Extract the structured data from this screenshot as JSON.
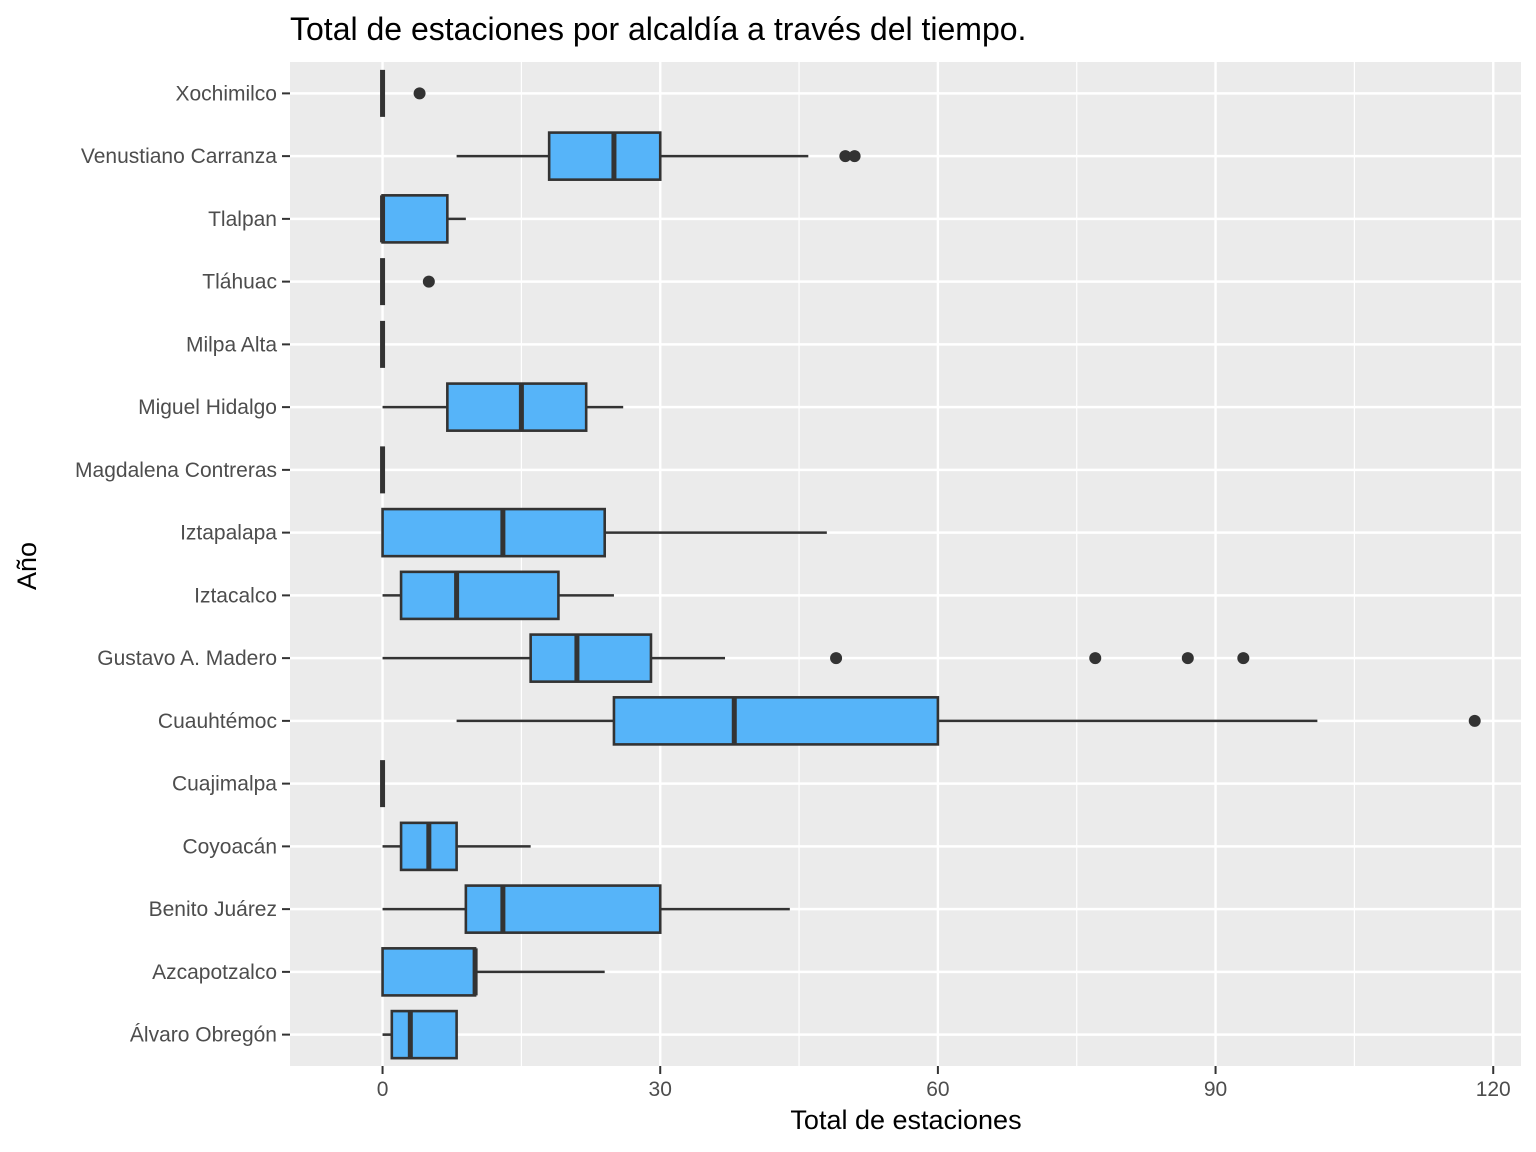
{
  "chart_data": {
    "type": "boxplot",
    "orientation": "horizontal",
    "title": "Total de estaciones por alcaldía a través del tiempo.",
    "xlabel": "Total de estaciones",
    "ylabel": "Año",
    "xlim": [
      -10,
      123
    ],
    "xticks": [
      0,
      30,
      60,
      90,
      120
    ],
    "grid": true,
    "legend": "none",
    "colors": {
      "panel": "#EBEBEB",
      "grid": "#FFFFFF",
      "box_fill": "#56B4F9",
      "box_line": "#333333",
      "tick": "#333333"
    },
    "categories": [
      "Xochimilco",
      "Venustiano Carranza",
      "Tlalpan",
      "Tláhuac",
      "Milpa Alta",
      "Miguel Hidalgo",
      "Magdalena Contreras",
      "Iztapalapa",
      "Iztacalco",
      "Gustavo A. Madero",
      "Cuauhtémoc",
      "Cuajimalpa",
      "Coyoacán",
      "Benito Juárez",
      "Azcapotzalco",
      "Álvaro Obregón"
    ],
    "boxes": [
      {
        "name": "Xochimilco",
        "min": 0,
        "q1": 0,
        "median": 0,
        "q3": 0,
        "max": 0,
        "outliers": [
          4
        ]
      },
      {
        "name": "Venustiano Carranza",
        "min": 8,
        "q1": 18,
        "median": 25,
        "q3": 30,
        "max": 46,
        "outliers": [
          50,
          51
        ]
      },
      {
        "name": "Tlalpan",
        "min": 0,
        "q1": 0,
        "median": 0,
        "q3": 7,
        "max": 9,
        "outliers": []
      },
      {
        "name": "Tláhuac",
        "min": 0,
        "q1": 0,
        "median": 0,
        "q3": 0,
        "max": 0,
        "outliers": [
          5
        ]
      },
      {
        "name": "Milpa Alta",
        "min": 0,
        "q1": 0,
        "median": 0,
        "q3": 0,
        "max": 0,
        "outliers": []
      },
      {
        "name": "Miguel Hidalgo",
        "min": 0,
        "q1": 7,
        "median": 15,
        "q3": 22,
        "max": 26,
        "outliers": []
      },
      {
        "name": "Magdalena Contreras",
        "min": 0,
        "q1": 0,
        "median": 0,
        "q3": 0,
        "max": 0,
        "outliers": []
      },
      {
        "name": "Iztapalapa",
        "min": 0,
        "q1": 0,
        "median": 13,
        "q3": 24,
        "max": 48,
        "outliers": []
      },
      {
        "name": "Iztacalco",
        "min": 0,
        "q1": 2,
        "median": 8,
        "q3": 19,
        "max": 25,
        "outliers": []
      },
      {
        "name": "Gustavo A. Madero",
        "min": 0,
        "q1": 16,
        "median": 21,
        "q3": 29,
        "max": 37,
        "outliers": [
          49,
          77,
          87,
          93
        ]
      },
      {
        "name": "Cuauhtémoc",
        "min": 8,
        "q1": 25,
        "median": 38,
        "q3": 60,
        "max": 101,
        "outliers": [
          118
        ]
      },
      {
        "name": "Cuajimalpa",
        "min": 0,
        "q1": 0,
        "median": 0,
        "q3": 0,
        "max": 0,
        "outliers": []
      },
      {
        "name": "Coyoacán",
        "min": 0,
        "q1": 2,
        "median": 5,
        "q3": 8,
        "max": 16,
        "outliers": []
      },
      {
        "name": "Benito Juárez",
        "min": 0,
        "q1": 9,
        "median": 13,
        "q3": 30,
        "max": 44,
        "outliers": []
      },
      {
        "name": "Azcapotzalco",
        "min": 0,
        "q1": 0,
        "median": 10,
        "q3": 10,
        "max": 24,
        "outliers": []
      },
      {
        "name": "Álvaro Obregón",
        "min": 0,
        "q1": 1,
        "median": 3,
        "q3": 8,
        "max": 8,
        "outliers": []
      }
    ]
  }
}
